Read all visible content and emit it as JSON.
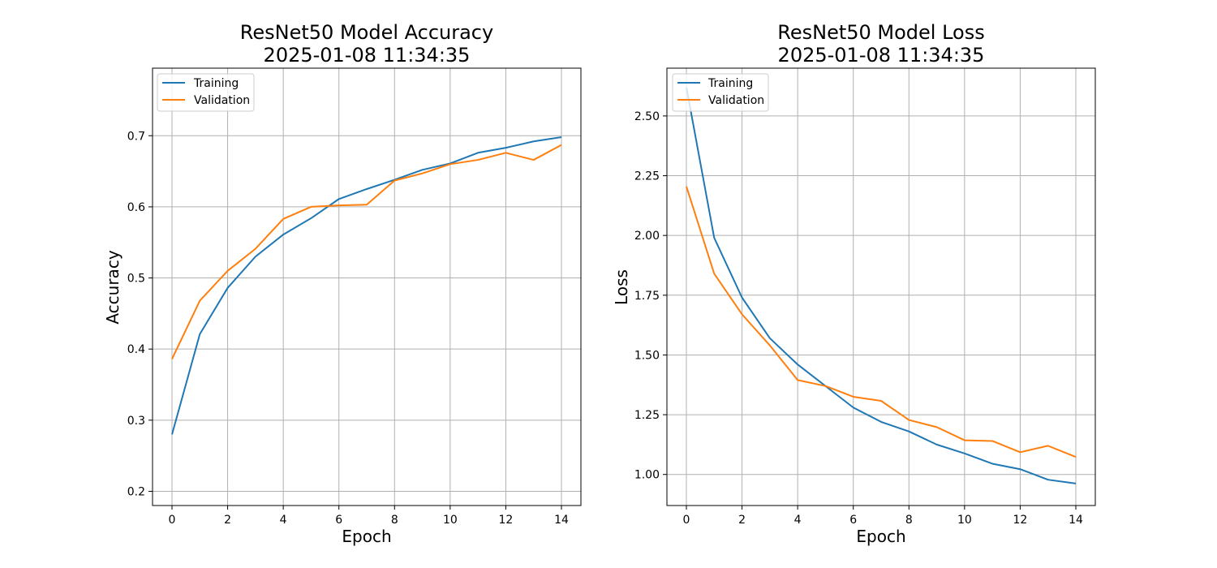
{
  "colors": {
    "training": "#1f77b4",
    "validation": "#ff7f0e",
    "grid": "#b0b0b0",
    "axes": "#000000"
  },
  "chart_data": [
    {
      "type": "line",
      "title_line1": "ResNet50 Model Accuracy",
      "title_line2": "2025-01-08 11:34:35",
      "xlabel": "Epoch",
      "ylabel": "Accuracy",
      "xlim": [
        -0.7,
        14.7
      ],
      "ylim": [
        0.18,
        0.795
      ],
      "xticks": [
        0,
        2,
        4,
        6,
        8,
        10,
        12,
        14
      ],
      "xtick_labels": [
        "0",
        "2",
        "4",
        "6",
        "8",
        "10",
        "12",
        "14"
      ],
      "yticks": [
        0.2,
        0.3,
        0.4,
        0.5,
        0.6,
        0.7
      ],
      "ytick_labels": [
        "0.2",
        "0.3",
        "0.4",
        "0.5",
        "0.6",
        "0.7"
      ],
      "grid": true,
      "legend_position": "top-left",
      "x": [
        0,
        1,
        2,
        3,
        4,
        5,
        6,
        7,
        8,
        9,
        10,
        11,
        12,
        13,
        14
      ],
      "series": [
        {
          "name": "Training",
          "color": "#1f77b4",
          "values": [
            0.28,
            0.421,
            0.486,
            0.53,
            0.561,
            0.584,
            0.611,
            0.625,
            0.638,
            0.652,
            0.661,
            0.676,
            0.683,
            0.692,
            0.698
          ]
        },
        {
          "name": "Validation",
          "color": "#ff7f0e",
          "values": [
            0.386,
            0.468,
            0.51,
            0.541,
            0.583,
            0.6,
            0.602,
            0.603,
            0.637,
            0.647,
            0.66,
            0.666,
            0.676,
            0.666,
            0.687
          ]
        }
      ]
    },
    {
      "type": "line",
      "title_line1": "ResNet50 Model Loss",
      "title_line2": "2025-01-08 11:34:35",
      "xlabel": "Epoch",
      "ylabel": "Loss",
      "xlim": [
        -0.7,
        14.7
      ],
      "ylim": [
        0.87,
        2.7
      ],
      "xticks": [
        0,
        2,
        4,
        6,
        8,
        10,
        12,
        14
      ],
      "xtick_labels": [
        "0",
        "2",
        "4",
        "6",
        "8",
        "10",
        "12",
        "14"
      ],
      "yticks": [
        1.0,
        1.25,
        1.5,
        1.75,
        2.0,
        2.25,
        2.5
      ],
      "ytick_labels": [
        "1.00",
        "1.25",
        "1.50",
        "1.75",
        "2.00",
        "2.25",
        "2.50"
      ],
      "grid": true,
      "legend_position": "top-left",
      "x": [
        0,
        1,
        2,
        3,
        4,
        5,
        6,
        7,
        8,
        9,
        10,
        11,
        12,
        13,
        14
      ],
      "series": [
        {
          "name": "Training",
          "color": "#1f77b4",
          "values": [
            2.62,
            1.99,
            1.74,
            1.57,
            1.46,
            1.37,
            1.28,
            1.22,
            1.18,
            1.125,
            1.088,
            1.045,
            1.022,
            0.978,
            0.962
          ]
        },
        {
          "name": "Validation",
          "color": "#ff7f0e",
          "values": [
            2.205,
            1.84,
            1.67,
            1.54,
            1.395,
            1.37,
            1.325,
            1.308,
            1.228,
            1.198,
            1.143,
            1.14,
            1.093,
            1.12,
            1.073
          ]
        }
      ]
    }
  ]
}
